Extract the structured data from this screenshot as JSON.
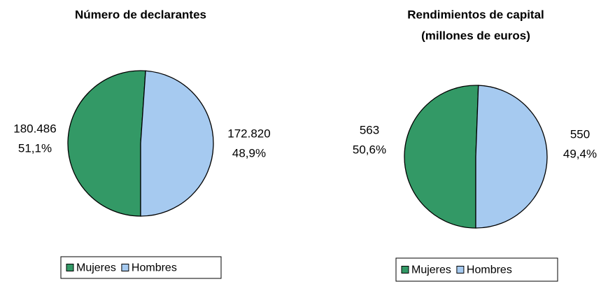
{
  "chart_data": [
    {
      "type": "pie",
      "title": [
        "Número de declarantes"
      ],
      "categories": [
        "Mujeres",
        "Hombres"
      ],
      "colors": [
        "#339966",
        "#a6caf0"
      ],
      "values": [
        180486,
        172820
      ],
      "value_labels": [
        "180.486",
        "172.820"
      ],
      "percent": [
        51.1,
        48.9
      ],
      "percent_labels": [
        "51,1%",
        "48,9%"
      ]
    },
    {
      "type": "pie",
      "title": [
        "Rendimientos de capital",
        "(millones de euros)"
      ],
      "categories": [
        "Mujeres",
        "Hombres"
      ],
      "colors": [
        "#339966",
        "#a6caf0"
      ],
      "values": [
        563,
        550
      ],
      "value_labels": [
        "563",
        "550"
      ],
      "percent": [
        50.6,
        49.4
      ],
      "percent_labels": [
        "50,6%",
        "49,4%"
      ]
    }
  ]
}
